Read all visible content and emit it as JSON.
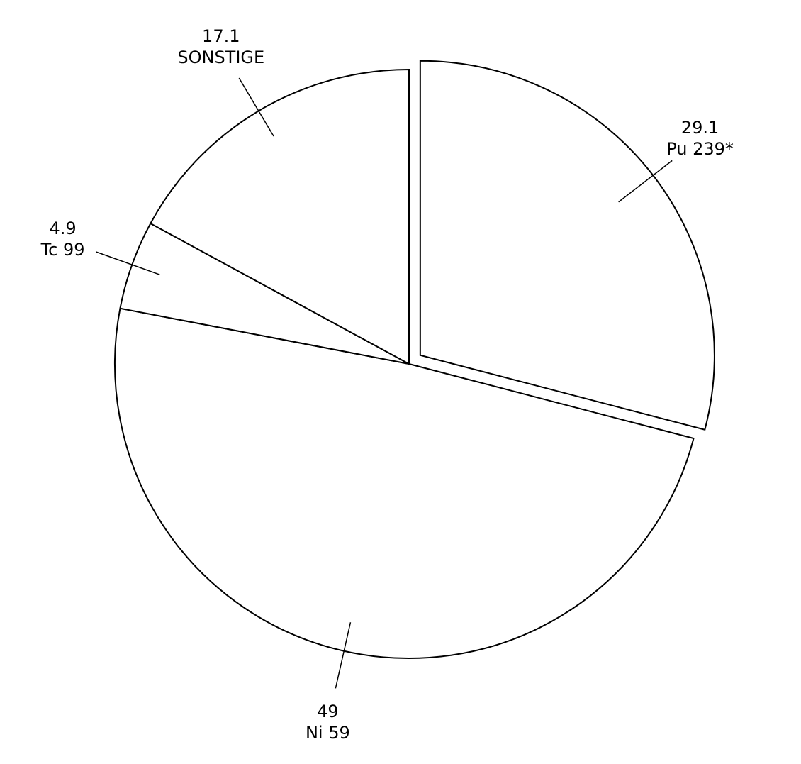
{
  "chart_data": {
    "type": "pie",
    "categories": [
      "Pu 239*",
      "Ni 59",
      "Tc 99",
      "SONSTIGE"
    ],
    "values": [
      29.1,
      49,
      4.9,
      17.1
    ],
    "exploded": [
      true,
      false,
      false,
      false
    ],
    "color": "#ffffff"
  }
}
